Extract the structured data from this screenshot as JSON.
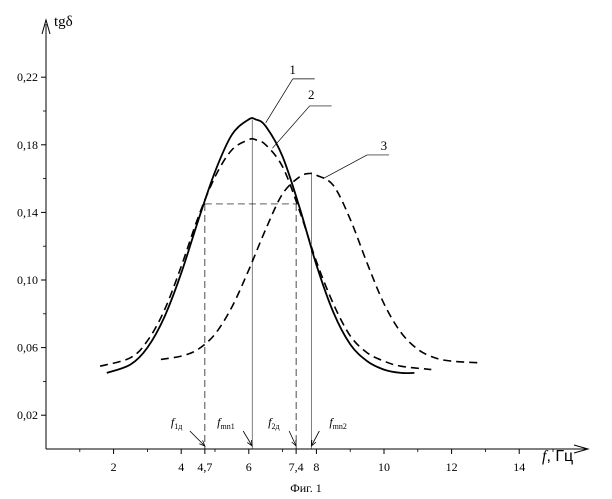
{
  "chart_data": {
    "type": "line",
    "title": "",
    "ylabel": "tgδ",
    "xlabel_var": "f",
    "xlabel_unit": ", Гц",
    "xlim": [
      0,
      15.5
    ],
    "ylim": [
      0,
      0.24
    ],
    "x_ticks": [
      2,
      4,
      6,
      8,
      10,
      12,
      14
    ],
    "x_tick_labels": [
      "2",
      "4",
      "6",
      "8",
      "10",
      "12",
      "14"
    ],
    "x_extra_ticks": [
      {
        "value": 4.7,
        "label": "4,7"
      },
      {
        "value": 7.4,
        "label": "7,4"
      }
    ],
    "y_ticks": [
      0.02,
      0.06,
      0.1,
      0.14,
      0.18,
      0.22
    ],
    "y_tick_labels": [
      "0,02",
      "0,06",
      "0,10",
      "0,14",
      "0,18",
      "0,22"
    ],
    "series": [
      {
        "name": "1",
        "style": "solid",
        "x": [
          1.8,
          2.5,
          3.0,
          3.5,
          4.0,
          4.5,
          5.0,
          5.5,
          6.0,
          6.2,
          6.5,
          7.0,
          7.5,
          8.0,
          8.5,
          9.0,
          9.5,
          10.0,
          10.5,
          10.9
        ],
        "values": [
          0.045,
          0.05,
          0.06,
          0.078,
          0.104,
          0.135,
          0.164,
          0.186,
          0.195,
          0.195,
          0.191,
          0.173,
          0.143,
          0.109,
          0.081,
          0.062,
          0.052,
          0.047,
          0.045,
          0.045
        ]
      },
      {
        "name": "2",
        "style": "dashed",
        "x": [
          1.6,
          2.5,
          3.0,
          3.5,
          4.0,
          4.5,
          5.0,
          5.5,
          6.0,
          6.2,
          6.5,
          7.0,
          7.5,
          8.0,
          8.5,
          9.0,
          9.5,
          10.0,
          10.5,
          11.4
        ],
        "values": [
          0.049,
          0.054,
          0.064,
          0.082,
          0.108,
          0.137,
          0.161,
          0.177,
          0.183,
          0.183,
          0.18,
          0.167,
          0.141,
          0.111,
          0.086,
          0.067,
          0.057,
          0.052,
          0.049,
          0.047
        ]
      },
      {
        "name": "3",
        "style": "dashed",
        "x": [
          3.4,
          4.0,
          4.5,
          5.0,
          5.5,
          6.0,
          6.5,
          7.0,
          7.5,
          7.8,
          8.0,
          8.5,
          9.0,
          9.5,
          10.0,
          10.5,
          11.0,
          11.5,
          12.0,
          12.8
        ],
        "values": [
          0.053,
          0.055,
          0.059,
          0.068,
          0.084,
          0.106,
          0.13,
          0.151,
          0.161,
          0.163,
          0.162,
          0.156,
          0.136,
          0.11,
          0.086,
          0.069,
          0.059,
          0.054,
          0.052,
          0.051
        ]
      }
    ],
    "guides": {
      "level": 0.145,
      "x_low": 4.7,
      "x_high": 7.4,
      "x_peak1": 6.1,
      "x_peak3": 7.85
    },
    "annotations": [
      {
        "base": "f",
        "sub": "1д",
        "x": 4.7
      },
      {
        "base": "f",
        "sub": "mn1",
        "x": 6.1
      },
      {
        "base": "f",
        "sub": "2д",
        "x": 7.4
      },
      {
        "base": "f",
        "sub": "mn2",
        "x": 7.85
      }
    ],
    "caption": "Фиг. 1",
    "grid": false,
    "legend": "none"
  }
}
